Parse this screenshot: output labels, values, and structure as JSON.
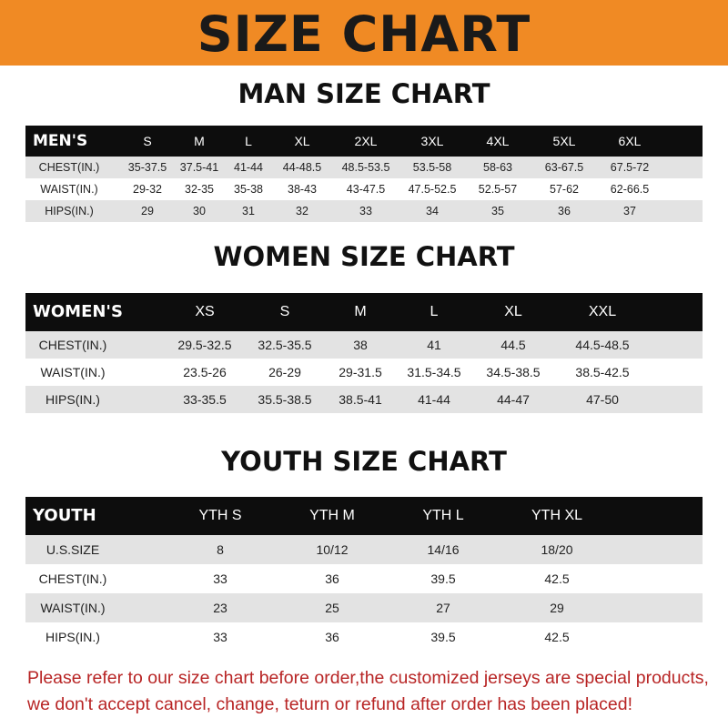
{
  "banner": "SIZE CHART",
  "men": {
    "title": "MAN SIZE CHART",
    "header": "MEN'S",
    "sizes": [
      "S",
      "M",
      "L",
      "XL",
      "2XL",
      "3XL",
      "4XL",
      "5XL",
      "6XL"
    ],
    "rows": [
      {
        "label": "CHEST(IN.)",
        "values": [
          "35-37.5",
          "37.5-41",
          "41-44",
          "44-48.5",
          "48.5-53.5",
          "53.5-58",
          "58-63",
          "63-67.5",
          "67.5-72"
        ]
      },
      {
        "label": "WAIST(IN.)",
        "values": [
          "29-32",
          "32-35",
          "35-38",
          "38-43",
          "43-47.5",
          "47.5-52.5",
          "52.5-57",
          "57-62",
          "62-66.5"
        ]
      },
      {
        "label": "HIPS(IN.)",
        "values": [
          "29",
          "30",
          "31",
          "32",
          "33",
          "34",
          "35",
          "36",
          "37"
        ]
      }
    ]
  },
  "women": {
    "title": "WOMEN SIZE CHART",
    "header": "WOMEN'S",
    "sizes": [
      "XS",
      "S",
      "M",
      "L",
      "XL",
      "XXL"
    ],
    "rows": [
      {
        "label": "CHEST(IN.)",
        "values": [
          "29.5-32.5",
          "32.5-35.5",
          "38",
          "41",
          "44.5",
          "44.5-48.5"
        ]
      },
      {
        "label": "WAIST(IN.)",
        "values": [
          "23.5-26",
          "26-29",
          "29-31.5",
          "31.5-34.5",
          "34.5-38.5",
          "38.5-42.5"
        ]
      },
      {
        "label": "HIPS(IN.)",
        "values": [
          "33-35.5",
          "35.5-38.5",
          "38.5-41",
          "41-44",
          "44-47",
          "47-50"
        ]
      }
    ]
  },
  "youth": {
    "title": "YOUTH SIZE CHART",
    "header": "YOUTH",
    "sizes": [
      "YTH S",
      "YTH M",
      "YTH L",
      "YTH XL"
    ],
    "rows": [
      {
        "label": "U.S.SIZE",
        "values": [
          "8",
          "10/12",
          "14/16",
          "18/20"
        ]
      },
      {
        "label": "CHEST(IN.)",
        "values": [
          "33",
          "36",
          "39.5",
          "42.5"
        ]
      },
      {
        "label": "WAIST(IN.)",
        "values": [
          "23",
          "25",
          "27",
          "29"
        ]
      },
      {
        "label": "HIPS(IN.)",
        "values": [
          "33",
          "36",
          "39.5",
          "42.5"
        ]
      }
    ]
  },
  "note": {
    "line1": "Please refer to our size chart before order,the customized jerseys are special products,",
    "line2": "we don't accept cancel, change, teturn or refund after order has been placed!"
  },
  "colors": {
    "banner": "#f08a24",
    "header_row": "#0d0d0d",
    "alt_row": "#e3e3e3",
    "note": "#b82525"
  }
}
